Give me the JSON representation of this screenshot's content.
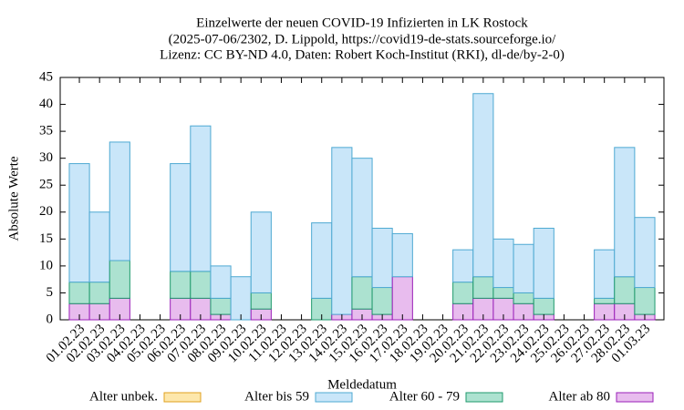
{
  "chart_data": {
    "type": "bar",
    "stacked": true,
    "title": [
      "Einzelwerte der neuen COVID-19 Infizierten in LK Rostock",
      "(2025-07-06/2302, D. Lippold, https://covid19-de-stats.sourceforge.io/",
      "Lizenz: CC BY-ND 4.0, Daten: Robert Koch-Institut (RKI), dl-de/by-2-0)"
    ],
    "x_label": "Meldedatum",
    "y_label": "Absolute Werte",
    "categories": [
      "01.02.23",
      "02.02.23",
      "03.02.23",
      "04.02.23",
      "05.02.23",
      "06.02.23",
      "07.02.23",
      "08.02.23",
      "09.02.23",
      "10.02.23",
      "11.02.23",
      "12.02.23",
      "13.02.23",
      "14.02.23",
      "15.02.23",
      "16.02.23",
      "17.02.23",
      "18.02.23",
      "19.02.23",
      "20.02.23",
      "21.02.23",
      "22.02.23",
      "23.02.23",
      "24.02.23",
      "25.02.23",
      "26.02.23",
      "27.02.23",
      "28.02.23",
      "01.03.23"
    ],
    "series": [
      {
        "name": "Alter ab 80",
        "color": "#e8bcee",
        "edge": "#9a1fb8",
        "values": [
          3,
          3,
          4,
          0,
          0,
          4,
          4,
          1,
          0,
          2,
          0,
          0,
          0,
          1,
          2,
          1,
          8,
          0,
          0,
          3,
          4,
          4,
          3,
          1,
          0,
          0,
          3,
          3,
          1
        ]
      },
      {
        "name": "Alter 60 - 79",
        "color": "#ace2d0",
        "edge": "#1f9a6c",
        "values": [
          4,
          4,
          7,
          0,
          0,
          5,
          5,
          3,
          0,
          3,
          0,
          0,
          4,
          0,
          6,
          5,
          0,
          0,
          0,
          4,
          4,
          2,
          2,
          3,
          0,
          0,
          1,
          5,
          5
        ]
      },
      {
        "name": "Alter bis 59",
        "color": "#c9e6f9",
        "edge": "#4ea9d2",
        "values": [
          22,
          13,
          22,
          0,
          0,
          20,
          27,
          6,
          8,
          15,
          0,
          0,
          14,
          31,
          22,
          11,
          8,
          0,
          0,
          6,
          34,
          9,
          9,
          13,
          0,
          0,
          9,
          24,
          13
        ]
      },
      {
        "name": "Alter unbek.",
        "color": "#fde7ab",
        "edge": "#e0a21f",
        "values": [
          0,
          0,
          0,
          0,
          0,
          0,
          0,
          0,
          0,
          0,
          0,
          0,
          0,
          0,
          0,
          0,
          0,
          0,
          0,
          0,
          0,
          0,
          0,
          0,
          0,
          0,
          0,
          0,
          0
        ]
      }
    ],
    "legend_order": [
      3,
      2,
      1,
      0
    ],
    "ylim": [
      0,
      45
    ],
    "yticks": [
      0,
      5,
      10,
      15,
      20,
      25,
      30,
      35,
      40,
      45
    ]
  }
}
